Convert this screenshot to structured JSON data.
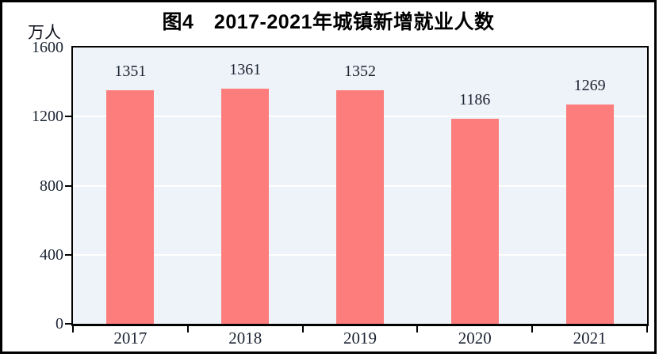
{
  "chart": {
    "title": "图4　2017-2021年城镇新增就业人数",
    "unit_label": "万人"
  },
  "chart_data": {
    "type": "bar",
    "title": "图4　2017-2021年城镇新增就业人数",
    "xlabel": "",
    "ylabel": "万人",
    "categories": [
      "2017",
      "2018",
      "2019",
      "2020",
      "2021"
    ],
    "values": [
      1351,
      1361,
      1352,
      1186,
      1269
    ],
    "value_labels": [
      "1351",
      "1361",
      "1352",
      "1186",
      "1269"
    ],
    "ylim": [
      0,
      1600
    ],
    "yticks": [
      0,
      400,
      800,
      1200,
      1600
    ],
    "grid": "horizontal white gridlines",
    "legend": "none",
    "data_labels_shown": true,
    "colors": {
      "bar_fill": "#fd7d7d",
      "plot_background": "#edf3f8",
      "gridline": "#ffffff",
      "axis_line": "#000000",
      "label_text": "#1c2433",
      "title_text": "#000000",
      "figure_border": "#000000"
    }
  }
}
